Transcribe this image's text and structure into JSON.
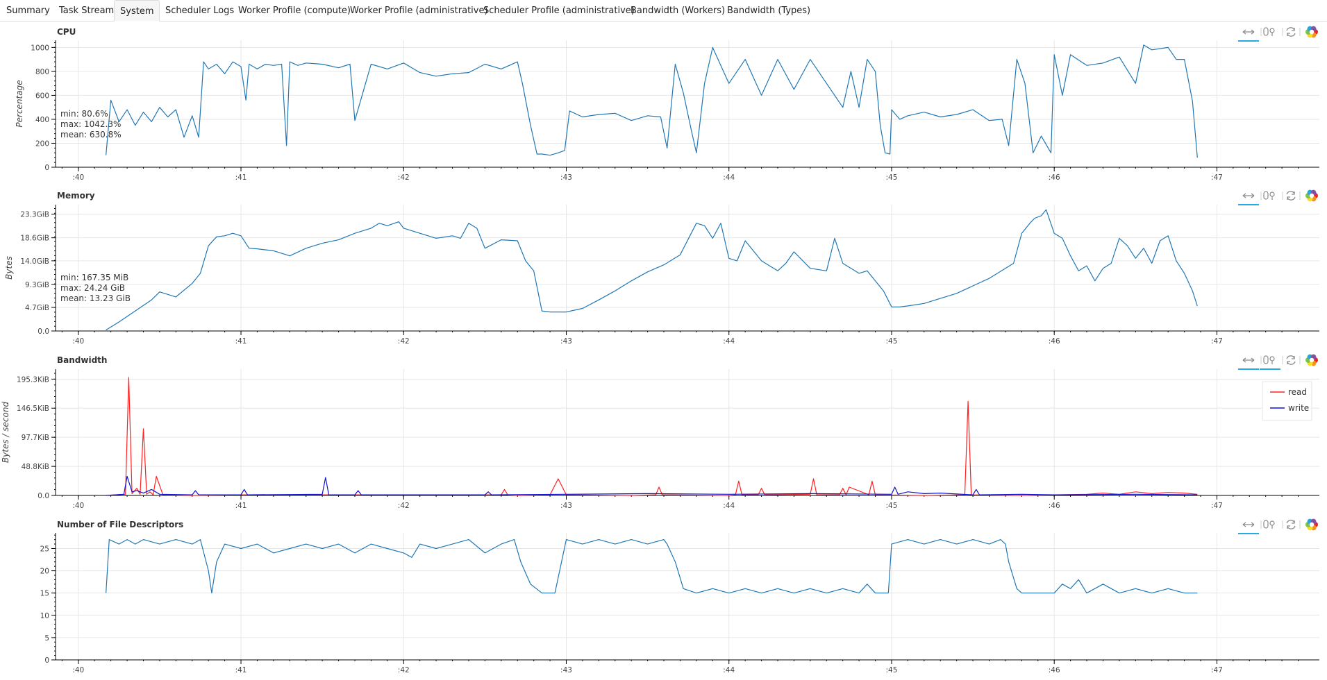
{
  "tabs": [
    {
      "label": "Summary",
      "active": false
    },
    {
      "label": "Task Stream",
      "active": false
    },
    {
      "label": "System",
      "active": true
    },
    {
      "label": "Scheduler Logs",
      "active": false
    },
    {
      "label": "Worker Profile (compute)",
      "active": false
    },
    {
      "label": "Worker Profile (administrative)",
      "active": false
    },
    {
      "label": "Scheduler Profile (administrative)",
      "active": false
    },
    {
      "label": "Bandwidth (Workers)",
      "active": false
    },
    {
      "label": "Bandwidth (Types)",
      "active": false
    }
  ],
  "toolbar": {
    "tools": [
      "pan-icon",
      "wheel-zoom-icon",
      "reset-icon",
      "bokeh-logo-icon"
    ],
    "accent_color": "#26aae1"
  },
  "chart_data": [
    {
      "type": "line",
      "title": "CPU",
      "ylabel": "Percentage",
      "xlabel": "",
      "x_ticks": [
        ":40",
        ":41",
        ":42",
        ":43",
        ":44",
        ":45",
        ":46",
        ":47"
      ],
      "x_tick_minutes": [
        40,
        41,
        42,
        43,
        44,
        45,
        46,
        47
      ],
      "xlim": [
        39.86,
        47.63
      ],
      "y_ticks": [
        "0",
        "200",
        "400",
        "600",
        "800",
        "1000"
      ],
      "y_tick_values": [
        0,
        200,
        400,
        600,
        800,
        1000
      ],
      "ylim": [
        0,
        1060
      ],
      "stats": [
        "min: 80.6%",
        "max: 1042.3%",
        "mean: 630.8%"
      ],
      "grid": true,
      "series": [
        {
          "color": "#1f77b4",
          "x": [
            40.17,
            40.2,
            40.25,
            40.3,
            40.35,
            40.4,
            40.45,
            40.5,
            40.55,
            40.6,
            40.65,
            40.7,
            40.74,
            40.77,
            40.8,
            40.85,
            40.9,
            40.95,
            41.0,
            41.03,
            41.05,
            41.1,
            41.15,
            41.2,
            41.25,
            41.28,
            41.3,
            41.35,
            41.4,
            41.5,
            41.6,
            41.67,
            41.7,
            41.8,
            41.9,
            42.0,
            42.1,
            42.2,
            42.3,
            42.4,
            42.5,
            42.6,
            42.7,
            42.73,
            42.78,
            42.82,
            42.85,
            42.9,
            42.95,
            42.99,
            43.02,
            43.1,
            43.2,
            43.3,
            43.4,
            43.5,
            43.58,
            43.62,
            43.67,
            43.72,
            43.77,
            43.8,
            43.85,
            43.9,
            44.0,
            44.1,
            44.2,
            44.3,
            44.4,
            44.5,
            44.6,
            44.7,
            44.75,
            44.8,
            44.85,
            44.9,
            44.93,
            44.96,
            44.99,
            45.0,
            45.05,
            45.1,
            45.2,
            45.3,
            45.4,
            45.5,
            45.6,
            45.68,
            45.72,
            45.77,
            45.82,
            45.87,
            45.92,
            45.98,
            46.0,
            46.05,
            46.1,
            46.2,
            46.3,
            46.4,
            46.5,
            46.55,
            46.6,
            46.7,
            46.75,
            46.8,
            46.85,
            46.88
          ],
          "y": [
            100,
            560,
            380,
            480,
            350,
            460,
            380,
            500,
            420,
            480,
            250,
            430,
            250,
            880,
            820,
            860,
            780,
            880,
            840,
            560,
            860,
            820,
            860,
            850,
            860,
            180,
            880,
            850,
            870,
            860,
            830,
            860,
            390,
            860,
            820,
            870,
            790,
            760,
            780,
            790,
            860,
            820,
            880,
            700,
            350,
            110,
            110,
            100,
            120,
            140,
            470,
            420,
            440,
            450,
            390,
            430,
            420,
            160,
            860,
            620,
            300,
            120,
            700,
            1000,
            700,
            900,
            600,
            900,
            650,
            900,
            700,
            500,
            800,
            500,
            900,
            800,
            350,
            120,
            110,
            480,
            400,
            430,
            460,
            420,
            440,
            480,
            390,
            400,
            180,
            900,
            700,
            120,
            260,
            120,
            940,
            600,
            940,
            850,
            870,
            920,
            700,
            1020,
            980,
            1000,
            900,
            900,
            550,
            80
          ]
        }
      ]
    },
    {
      "type": "line",
      "title": "Memory",
      "ylabel": "Bytes",
      "xlabel": "",
      "x_ticks": [
        ":40",
        ":41",
        ":42",
        ":43",
        ":44",
        ":45",
        ":46",
        ":47"
      ],
      "x_tick_minutes": [
        40,
        41,
        42,
        43,
        44,
        45,
        46,
        47
      ],
      "xlim": [
        39.86,
        47.63
      ],
      "y_ticks": [
        "0.0",
        "4.7GiB",
        "9.3GiB",
        "14.0GiB",
        "18.6GiB",
        "23.3GiB"
      ],
      "y_tick_values": [
        0,
        4.7,
        9.3,
        14.0,
        18.6,
        23.3
      ],
      "ylim": [
        0,
        25.2
      ],
      "stats": [
        "min: 167.35 MiB",
        "max: 24.24 GiB",
        "mean: 13.23 GiB"
      ],
      "grid": true,
      "series": [
        {
          "color": "#1f77b4",
          "x": [
            40.17,
            40.25,
            40.35,
            40.45,
            40.5,
            40.6,
            40.7,
            40.75,
            40.8,
            40.85,
            40.9,
            40.95,
            41.0,
            41.05,
            41.1,
            41.2,
            41.3,
            41.4,
            41.5,
            41.6,
            41.7,
            41.8,
            41.85,
            41.9,
            41.97,
            42.0,
            42.1,
            42.2,
            42.3,
            42.35,
            42.4,
            42.45,
            42.5,
            42.6,
            42.7,
            42.75,
            42.8,
            42.85,
            42.9,
            43.0,
            43.1,
            43.2,
            43.3,
            43.4,
            43.5,
            43.6,
            43.7,
            43.8,
            43.85,
            43.9,
            43.95,
            44.0,
            44.05,
            44.1,
            44.2,
            44.3,
            44.35,
            44.4,
            44.5,
            44.6,
            44.65,
            44.7,
            44.8,
            44.85,
            44.9,
            44.95,
            45.0,
            45.05,
            45.1,
            45.2,
            45.3,
            45.4,
            45.5,
            45.6,
            45.7,
            45.75,
            45.8,
            45.85,
            45.88,
            45.92,
            45.95,
            46.0,
            46.05,
            46.1,
            46.15,
            46.2,
            46.25,
            46.3,
            46.35,
            46.4,
            46.45,
            46.5,
            46.55,
            46.6,
            46.65,
            46.7,
            46.75,
            46.8,
            46.85,
            46.88
          ],
          "y": [
            0.2,
            1.8,
            4.0,
            6.2,
            7.8,
            6.8,
            9.5,
            11.5,
            17.0,
            18.8,
            19.0,
            19.5,
            19.0,
            16.5,
            16.4,
            16.0,
            15.0,
            16.5,
            17.5,
            18.2,
            19.5,
            20.5,
            21.5,
            21.0,
            21.8,
            20.5,
            19.5,
            18.5,
            19.0,
            18.5,
            21.5,
            20.5,
            16.5,
            18.2,
            18.0,
            14.0,
            12.0,
            4.0,
            3.8,
            3.8,
            4.5,
            6.2,
            8.0,
            10.0,
            11.8,
            13.2,
            15.2,
            21.5,
            21.0,
            18.5,
            21.5,
            14.5,
            14.0,
            18.0,
            14.0,
            12.0,
            13.5,
            15.8,
            12.5,
            12.0,
            18.5,
            13.5,
            11.5,
            12.0,
            10.0,
            8.0,
            4.8,
            4.8,
            5.0,
            5.5,
            6.5,
            7.5,
            9.0,
            10.5,
            12.5,
            13.5,
            19.5,
            21.5,
            22.5,
            23.0,
            24.2,
            19.5,
            18.5,
            15.0,
            12.0,
            13.0,
            10.0,
            12.5,
            13.5,
            18.5,
            17.0,
            14.5,
            16.5,
            13.5,
            18.0,
            19.0,
            14.0,
            11.5,
            8.0,
            5.0
          ]
        }
      ]
    },
    {
      "type": "line",
      "title": "Bandwidth",
      "ylabel": "Bytes / second",
      "xlabel": "",
      "x_ticks": [
        ":40",
        ":41",
        ":42",
        ":43",
        ":44",
        ":45",
        ":46",
        ":47"
      ],
      "x_tick_minutes": [
        40,
        41,
        42,
        43,
        44,
        45,
        46,
        47
      ],
      "xlim": [
        39.86,
        47.63
      ],
      "y_ticks": [
        "0.0",
        "48.8KiB",
        "97.7KiB",
        "146.5KiB",
        "195.3KiB"
      ],
      "y_tick_values": [
        0,
        48.8,
        97.7,
        146.5,
        195.3
      ],
      "ylim": [
        0,
        212
      ],
      "legend": {
        "position": "top-right",
        "entries": [
          "read",
          "write"
        ]
      },
      "grid": true,
      "series": [
        {
          "name": "read",
          "color": "#ff2020",
          "x": [
            40.17,
            40.29,
            40.31,
            40.33,
            40.36,
            40.38,
            40.4,
            40.42,
            40.44,
            40.46,
            40.48,
            40.52,
            40.7,
            41.0,
            41.5,
            42.0,
            42.4,
            42.6,
            42.62,
            42.64,
            42.7,
            42.9,
            42.95,
            43.0,
            43.4,
            43.55,
            43.57,
            43.59,
            44.0,
            44.04,
            44.06,
            44.08,
            44.18,
            44.2,
            44.22,
            44.5,
            44.52,
            44.54,
            44.68,
            44.7,
            44.72,
            44.74,
            44.86,
            44.88,
            44.9,
            45.2,
            45.45,
            45.47,
            45.49,
            45.8,
            46.2,
            46.3,
            46.4,
            46.5,
            46.6,
            46.7,
            46.8,
            46.88
          ],
          "y": [
            0,
            2,
            198,
            3,
            12,
            2,
            112,
            2,
            6,
            1,
            32,
            1,
            0,
            1,
            1,
            1,
            1,
            1,
            10,
            1,
            0,
            1,
            28,
            1,
            0,
            1,
            14,
            1,
            0,
            1,
            24,
            1,
            1,
            12,
            1,
            2,
            28,
            1,
            1,
            12,
            1,
            14,
            1,
            24,
            1,
            0,
            1,
            158,
            1,
            0,
            2,
            4,
            2,
            6,
            3,
            5,
            4,
            2
          ]
        },
        {
          "name": "write",
          "color": "#1010d0",
          "x": [
            40.17,
            40.28,
            40.3,
            40.33,
            40.36,
            40.4,
            40.45,
            40.5,
            40.7,
            40.72,
            40.74,
            41.0,
            41.02,
            41.04,
            41.5,
            41.52,
            41.54,
            41.7,
            41.72,
            41.74,
            42.0,
            42.5,
            42.52,
            42.54,
            43.0,
            43.5,
            44.0,
            44.5,
            45.0,
            45.02,
            45.04,
            45.1,
            45.2,
            45.3,
            45.5,
            45.52,
            45.54,
            45.8,
            46.0,
            46.5,
            46.88
          ],
          "y": [
            0,
            2,
            32,
            6,
            8,
            4,
            10,
            2,
            1,
            8,
            1,
            1,
            10,
            1,
            2,
            30,
            1,
            1,
            8,
            1,
            1,
            1,
            6,
            1,
            2,
            3,
            2,
            3,
            2,
            14,
            2,
            6,
            3,
            4,
            1,
            10,
            1,
            2,
            1,
            2,
            1
          ]
        }
      ]
    },
    {
      "type": "line",
      "title": "Number of File Descriptors",
      "ylabel": "",
      "xlabel": "",
      "x_ticks": [
        ":40",
        ":41",
        ":42",
        ":43",
        ":44",
        ":45",
        ":46",
        ":47"
      ],
      "x_tick_minutes": [
        40,
        41,
        42,
        43,
        44,
        45,
        46,
        47
      ],
      "xlim": [
        39.86,
        47.63
      ],
      "y_ticks": [
        "0",
        "5",
        "10",
        "15",
        "20",
        "25"
      ],
      "y_tick_values": [
        0,
        5,
        10,
        15,
        20,
        25
      ],
      "ylim": [
        0,
        28.5
      ],
      "grid": true,
      "series": [
        {
          "color": "#1f77b4",
          "x": [
            40.17,
            40.19,
            40.25,
            40.3,
            40.35,
            40.4,
            40.5,
            40.6,
            40.7,
            40.75,
            40.8,
            40.82,
            40.85,
            40.9,
            41.0,
            41.1,
            41.2,
            41.3,
            41.4,
            41.5,
            41.6,
            41.7,
            41.8,
            41.9,
            42.0,
            42.05,
            42.1,
            42.2,
            42.3,
            42.4,
            42.5,
            42.6,
            42.68,
            42.72,
            42.78,
            42.85,
            42.9,
            42.93,
            43.0,
            43.1,
            43.2,
            43.3,
            43.4,
            43.5,
            43.6,
            43.62,
            43.67,
            43.72,
            43.8,
            43.9,
            44.0,
            44.1,
            44.2,
            44.3,
            44.4,
            44.5,
            44.6,
            44.7,
            44.8,
            44.85,
            44.9,
            44.95,
            44.98,
            45.0,
            45.1,
            45.2,
            45.3,
            45.4,
            45.5,
            45.6,
            45.67,
            45.7,
            45.72,
            45.77,
            45.8,
            45.9,
            46.0,
            46.05,
            46.1,
            46.15,
            46.2,
            46.3,
            46.4,
            46.5,
            46.6,
            46.7,
            46.8,
            46.88
          ],
          "y": [
            15,
            27,
            26,
            27,
            26,
            27,
            26,
            27,
            26,
            27,
            20,
            15,
            22,
            26,
            25,
            26,
            24,
            25,
            26,
            25,
            26,
            24,
            26,
            25,
            24,
            23,
            26,
            25,
            26,
            27,
            24,
            26,
            27,
            22,
            17,
            15,
            15,
            15,
            27,
            26,
            27,
            26,
            27,
            26,
            27,
            26,
            22,
            16,
            15,
            16,
            15,
            16,
            15,
            16,
            15,
            16,
            15,
            16,
            15,
            17,
            15,
            15,
            15,
            26,
            27,
            26,
            27,
            26,
            27,
            26,
            27,
            26,
            22,
            16,
            15,
            15,
            15,
            17,
            16,
            18,
            15,
            17,
            15,
            16,
            15,
            16,
            15,
            15
          ]
        }
      ]
    }
  ]
}
